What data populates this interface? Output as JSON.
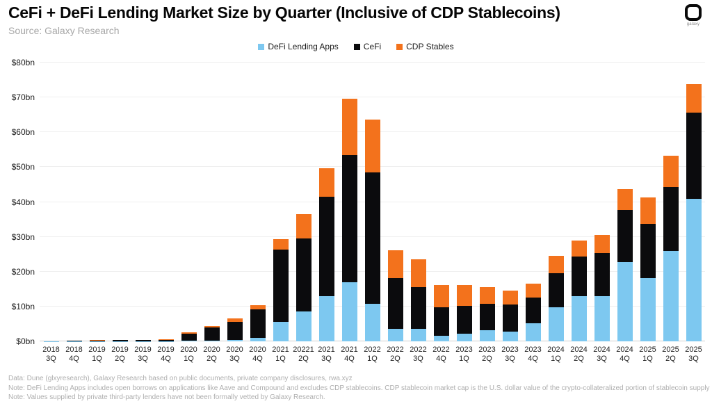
{
  "header": {
    "title": "CeFi + DeFi Lending Market Size by Quarter (Inclusive of CDP Stablecoins)",
    "source": "Source: Galaxy Research",
    "logo_text": "galaxy"
  },
  "chart_data": {
    "type": "bar",
    "stacked": true,
    "title": "CeFi + DeFi Lending Market Size by Quarter (Inclusive of CDP Stablecoins)",
    "xlabel": "",
    "ylabel": "",
    "ylim": [
      0,
      80
    ],
    "grid": true,
    "legend_position": "top-center",
    "yticks": [
      {
        "value": 0,
        "label": "$0bn"
      },
      {
        "value": 10,
        "label": "$10bn"
      },
      {
        "value": 20,
        "label": "$20bn"
      },
      {
        "value": 30,
        "label": "$30bn"
      },
      {
        "value": 40,
        "label": "$40bn"
      },
      {
        "value": 50,
        "label": "$50bn"
      },
      {
        "value": 60,
        "label": "$60bn"
      },
      {
        "value": 70,
        "label": "$70bn"
      },
      {
        "value": 80,
        "label": "$80bn"
      }
    ],
    "categories": [
      {
        "year": "2018",
        "quarter": "3Q"
      },
      {
        "year": "2018",
        "quarter": "4Q"
      },
      {
        "year": "2019",
        "quarter": "1Q"
      },
      {
        "year": "2019",
        "quarter": "2Q"
      },
      {
        "year": "2019",
        "quarter": "3Q"
      },
      {
        "year": "2019",
        "quarter": "4Q"
      },
      {
        "year": "2020",
        "quarter": "1Q"
      },
      {
        "year": "2020",
        "quarter": "2Q"
      },
      {
        "year": "2020",
        "quarter": "3Q"
      },
      {
        "year": "2020",
        "quarter": "4Q"
      },
      {
        "year": "2021",
        "quarter": "1Q"
      },
      {
        "year": "20221",
        "quarter": "2Q"
      },
      {
        "year": "2021",
        "quarter": "3Q"
      },
      {
        "year": "2021",
        "quarter": "4Q"
      },
      {
        "year": "2022",
        "quarter": "1Q"
      },
      {
        "year": "2022",
        "quarter": "2Q"
      },
      {
        "year": "2022",
        "quarter": "3Q"
      },
      {
        "year": "2022",
        "quarter": "4Q"
      },
      {
        "year": "2023",
        "quarter": "1Q"
      },
      {
        "year": "2023",
        "quarter": "2Q"
      },
      {
        "year": "2023",
        "quarter": "3Q"
      },
      {
        "year": "2023",
        "quarter": "4Q"
      },
      {
        "year": "2024",
        "quarter": "1Q"
      },
      {
        "year": "2024",
        "quarter": "2Q"
      },
      {
        "year": "2024",
        "quarter": "3Q"
      },
      {
        "year": "2024",
        "quarter": "4Q"
      },
      {
        "year": "2025",
        "quarter": "1Q"
      },
      {
        "year": "2025",
        "quarter": "2Q"
      },
      {
        "year": "2025",
        "quarter": "3Q"
      }
    ],
    "series": [
      {
        "name": "DeFi Lending Apps",
        "color": "#7dc8f0",
        "values": [
          0.02,
          0.05,
          0.05,
          0.1,
          0.1,
          0.1,
          0.2,
          0.3,
          0.5,
          1.0,
          5.6,
          8.6,
          13.0,
          17.0,
          10.8,
          3.6,
          3.6,
          1.6,
          2.2,
          3.2,
          2.8,
          5.2,
          9.8,
          13.0,
          13.0,
          22.8,
          18.2,
          25.9,
          40.9
        ]
      },
      {
        "name": "CeFi",
        "color": "#0b0b0d",
        "values": [
          0.08,
          0.15,
          0.25,
          0.3,
          0.3,
          0.35,
          2.0,
          3.7,
          5.1,
          8.2,
          20.8,
          21.0,
          28.6,
          36.4,
          37.7,
          14.6,
          12.0,
          8.2,
          8.0,
          7.6,
          7.8,
          7.4,
          9.8,
          11.4,
          12.4,
          15.0,
          15.6,
          18.3,
          24.8
        ]
      },
      {
        "name": "CDP Stables",
        "color": "#f3721c",
        "values": [
          0.0,
          0.05,
          0.05,
          0.1,
          0.1,
          0.1,
          0.3,
          0.4,
          0.9,
          1.1,
          3.0,
          7.0,
          8.0,
          16.3,
          15.2,
          8.0,
          8.0,
          6.4,
          6.0,
          4.8,
          4.0,
          4.0,
          5.0,
          4.5,
          5.2,
          5.8,
          7.6,
          9.0,
          8.2
        ]
      }
    ]
  },
  "footer": {
    "lines": [
      "Data: Dune (glxyresearch), Galaxy Research based on public documents, private company disclosures, rwa.xyz",
      "Note: DeFi Lending Apps includes open borrows on applications like Aave and Compound and excludes CDP stablecoins. CDP stablecoin market cap is the U.S. dollar value of the crypto-collateralized portion of stablecoin supply",
      "Note: Values supplied by private third-party lenders have not been formally vetted  by Galaxy Research."
    ]
  }
}
